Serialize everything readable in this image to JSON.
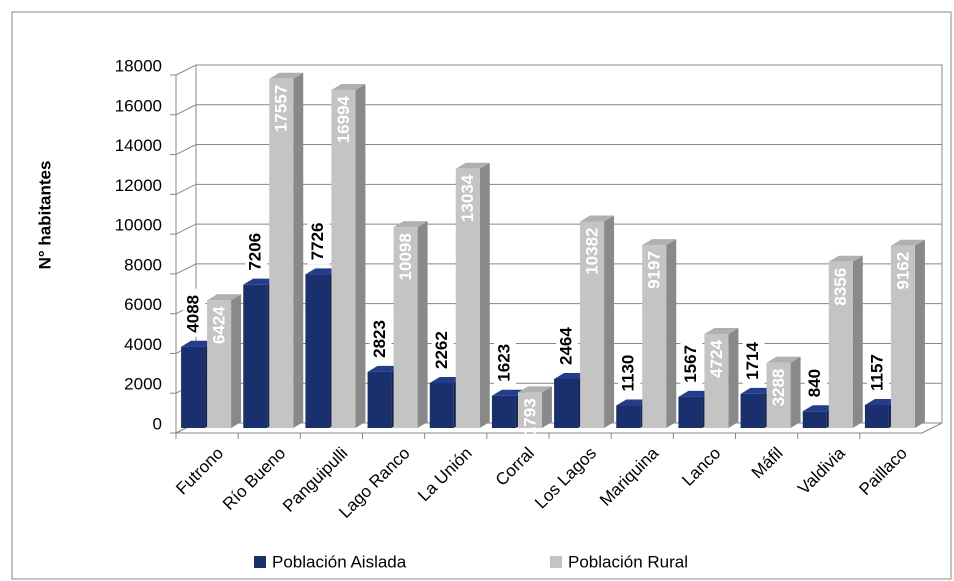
{
  "chart_data": {
    "type": "bar3d",
    "ylabel": "N° habitantes",
    "categories": [
      "Futrono",
      "Río Bueno",
      "Panguipulli",
      "Lago Ranco",
      "La Unión",
      "Corral",
      "Los Lagos",
      "Mariquina",
      "Lanco",
      "Máfil",
      "Valdivia",
      "Paillaco"
    ],
    "series": [
      {
        "name": "Población Aislada",
        "color": "#1a2f6e",
        "values": [
          4088,
          7206,
          7726,
          2823,
          2262,
          1623,
          2464,
          1130,
          1567,
          1714,
          840,
          1157
        ]
      },
      {
        "name": "Población Rural",
        "color": "#c4c4c4",
        "values": [
          6424,
          17557,
          16994,
          10098,
          13034,
          1793,
          10382,
          9197,
          4724,
          3288,
          8356,
          9162
        ]
      }
    ],
    "ylim": [
      0,
      18000
    ],
    "yticks": [
      0,
      2000,
      4000,
      6000,
      8000,
      10000,
      12000,
      14000,
      16000,
      18000
    ],
    "grid": true,
    "legend": "bottom"
  }
}
